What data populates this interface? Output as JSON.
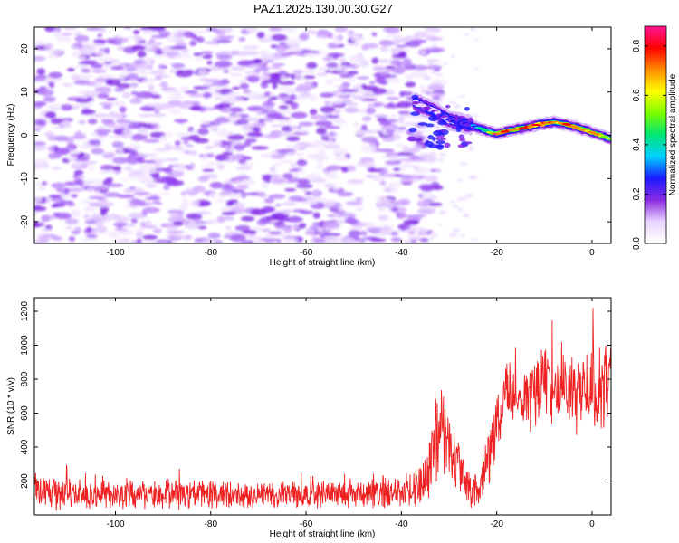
{
  "title": "PAZ1.2025.130.00.30.G27",
  "colors": {
    "snr_line": "#ee2222",
    "scatter_purple": "#7a1fe8",
    "colorbar_stops": [
      "#ffffff",
      "#e9d5ff",
      "#8a2be2",
      "#1a1aff",
      "#00d0ff",
      "#00e676",
      "#7cfc00",
      "#ffff00",
      "#ff8c00",
      "#ff0000",
      "#ff1493"
    ]
  },
  "chart_data": [
    {
      "type": "heatmap",
      "xlabel": "Height of straight line (km)",
      "ylabel": "Frequency (Hz)",
      "xlim": [
        -117,
        4
      ],
      "ylim": [
        -25,
        25
      ],
      "x_ticks": [
        -100,
        -80,
        -60,
        -40,
        -20,
        0
      ],
      "x_tick_labels": [
        "-100",
        "-80",
        "-60",
        "-40",
        "-20",
        "0"
      ],
      "y_ticks": [
        20,
        10,
        0,
        -10,
        -20
      ],
      "y_tick_labels": [
        "20",
        "10",
        "0",
        "-10",
        "-20"
      ],
      "colorbar": {
        "label": "Normalized spectral amplitude",
        "range": [
          0,
          0.88
        ],
        "ticks": [
          0.0,
          0.2,
          0.4,
          0.6,
          0.8
        ],
        "tick_labels": [
          "0.0",
          "0.2",
          "0.4",
          "0.6",
          "0.8"
        ]
      },
      "noise_region": {
        "x_range": [
          -117,
          -34
        ],
        "amplitude_range": [
          0.02,
          0.12
        ]
      },
      "signal_track": [
        {
          "x": -37,
          "freq": 7.5,
          "amp": 0.12
        },
        {
          "x": -33,
          "freq": 5.5,
          "amp": 0.15
        },
        {
          "x": -30,
          "freq": 3.5,
          "amp": 0.18
        },
        {
          "x": -26,
          "freq": 2.5,
          "amp": 0.25
        },
        {
          "x": -22,
          "freq": 1.0,
          "amp": 0.45
        },
        {
          "x": -20,
          "freq": 0.3,
          "amp": 0.8
        },
        {
          "x": -17,
          "freq": 1.2,
          "amp": 0.7
        },
        {
          "x": -14,
          "freq": 1.8,
          "amp": 0.75
        },
        {
          "x": -11,
          "freq": 2.6,
          "amp": 0.8
        },
        {
          "x": -8,
          "freq": 3.0,
          "amp": 0.7
        },
        {
          "x": -5,
          "freq": 2.4,
          "amp": 0.75
        },
        {
          "x": -2,
          "freq": 1.4,
          "amp": 0.65
        },
        {
          "x": 1,
          "freq": 0.3,
          "amp": 0.7
        },
        {
          "x": 4,
          "freq": -0.8,
          "amp": 0.5
        }
      ]
    },
    {
      "type": "line",
      "xlabel": "Height of straight line (km)",
      "ylabel": "SNR (10 * v/v)",
      "xlim": [
        -117,
        4
      ],
      "ylim": [
        0,
        1280
      ],
      "x_ticks": [
        -100,
        -80,
        -60,
        -40,
        -20,
        0
      ],
      "x_tick_labels": [
        "-100",
        "-80",
        "-60",
        "-40",
        "-20",
        "0"
      ],
      "y_ticks": [
        200,
        400,
        600,
        800,
        1000,
        1200
      ],
      "y_tick_labels": [
        "200",
        "400",
        "600",
        "800",
        "1000",
        "1200"
      ],
      "series": [
        {
          "x": [
            -117,
            -110,
            -100,
            -90,
            -80,
            -70,
            -60,
            -50,
            -40,
            -36,
            -34,
            -32,
            -30,
            -28,
            -26,
            -24,
            -22,
            -20,
            -18,
            -16,
            -14,
            -12,
            -10,
            -8,
            -6,
            -4,
            -2,
            0,
            2,
            4
          ],
          "y_mean": [
            150,
            120,
            120,
            120,
            120,
            120,
            120,
            120,
            130,
            170,
            270,
            550,
            420,
            260,
            160,
            150,
            280,
            560,
            720,
            650,
            700,
            740,
            820,
            720,
            800,
            690,
            750,
            800,
            700,
            900
          ],
          "y_noise": [
            110,
            80,
            80,
            80,
            80,
            80,
            80,
            80,
            90,
            120,
            220,
            300,
            220,
            150,
            100,
            100,
            150,
            200,
            200,
            200,
            200,
            220,
            220,
            220,
            220,
            220,
            220,
            250,
            250,
            250
          ]
        }
      ]
    }
  ]
}
